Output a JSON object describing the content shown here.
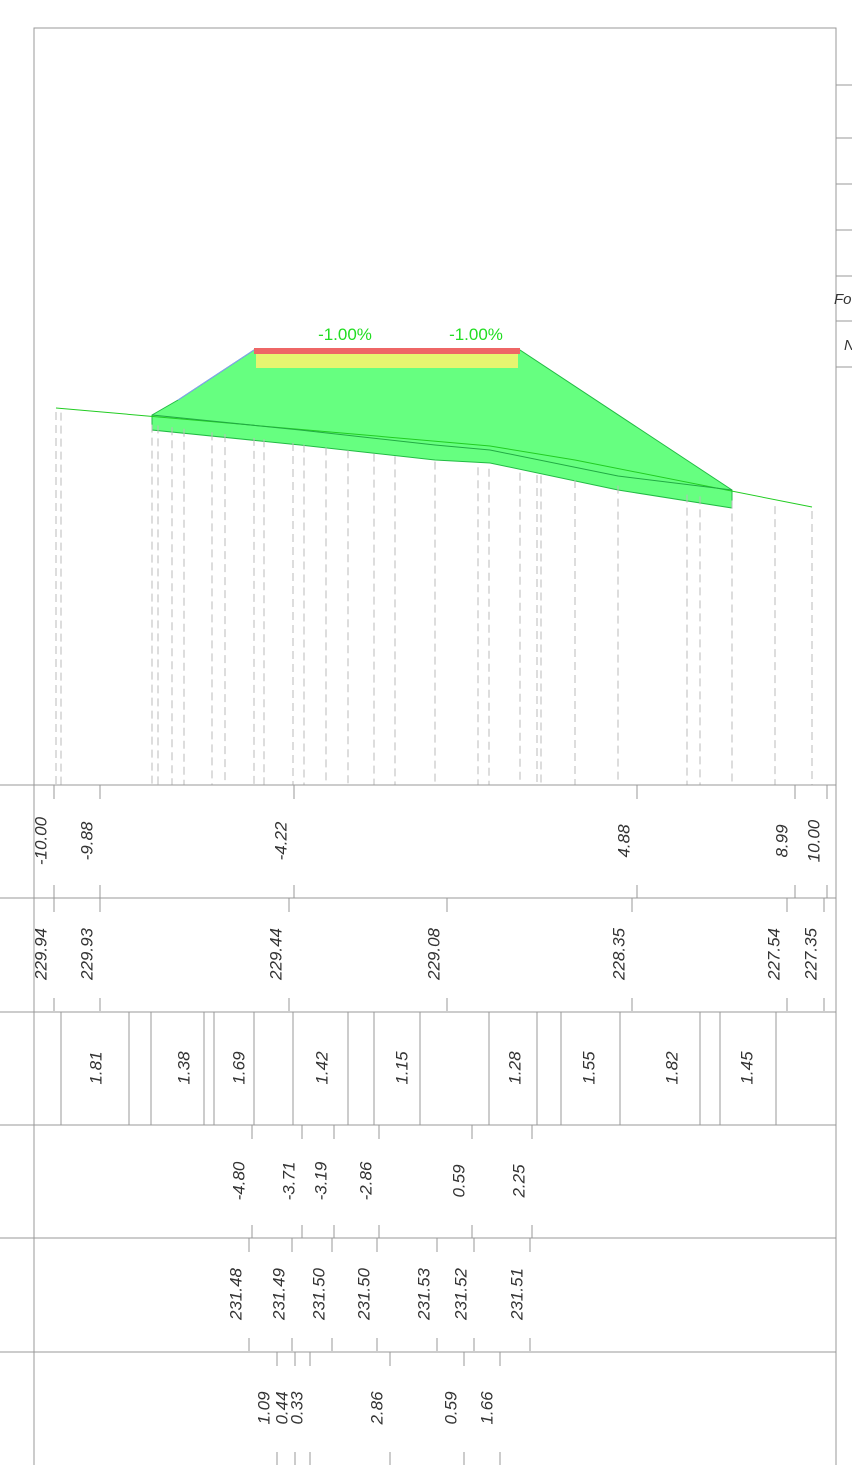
{
  "slope_labels": [
    "-1.00%",
    "-1.00%"
  ],
  "side_labels": [
    "Fo",
    "N"
  ],
  "table": {
    "rows": [
      [
        "-10.00",
        "-9.88",
        "-4.22",
        "4.88",
        "8.99",
        "10.00"
      ],
      [
        "229.94",
        "229.93",
        "229.44",
        "229.08",
        "228.35",
        "227.54",
        "227.35"
      ],
      [
        "1.81",
        "1.38",
        "1.69",
        "1.42",
        "1.15",
        "1.28",
        "1.55",
        "1.82",
        "1.45"
      ],
      [
        "-4.80",
        "-3.71",
        "-3.19",
        "-2.86",
        "0.59",
        "2.25"
      ],
      [
        "231.48",
        "231.49",
        "231.50",
        "231.50",
        "231.53",
        "231.52",
        "231.51"
      ],
      [
        "1.09",
        "0.44",
        "0.33",
        "2.86",
        "0.59",
        "1.66"
      ]
    ]
  }
}
